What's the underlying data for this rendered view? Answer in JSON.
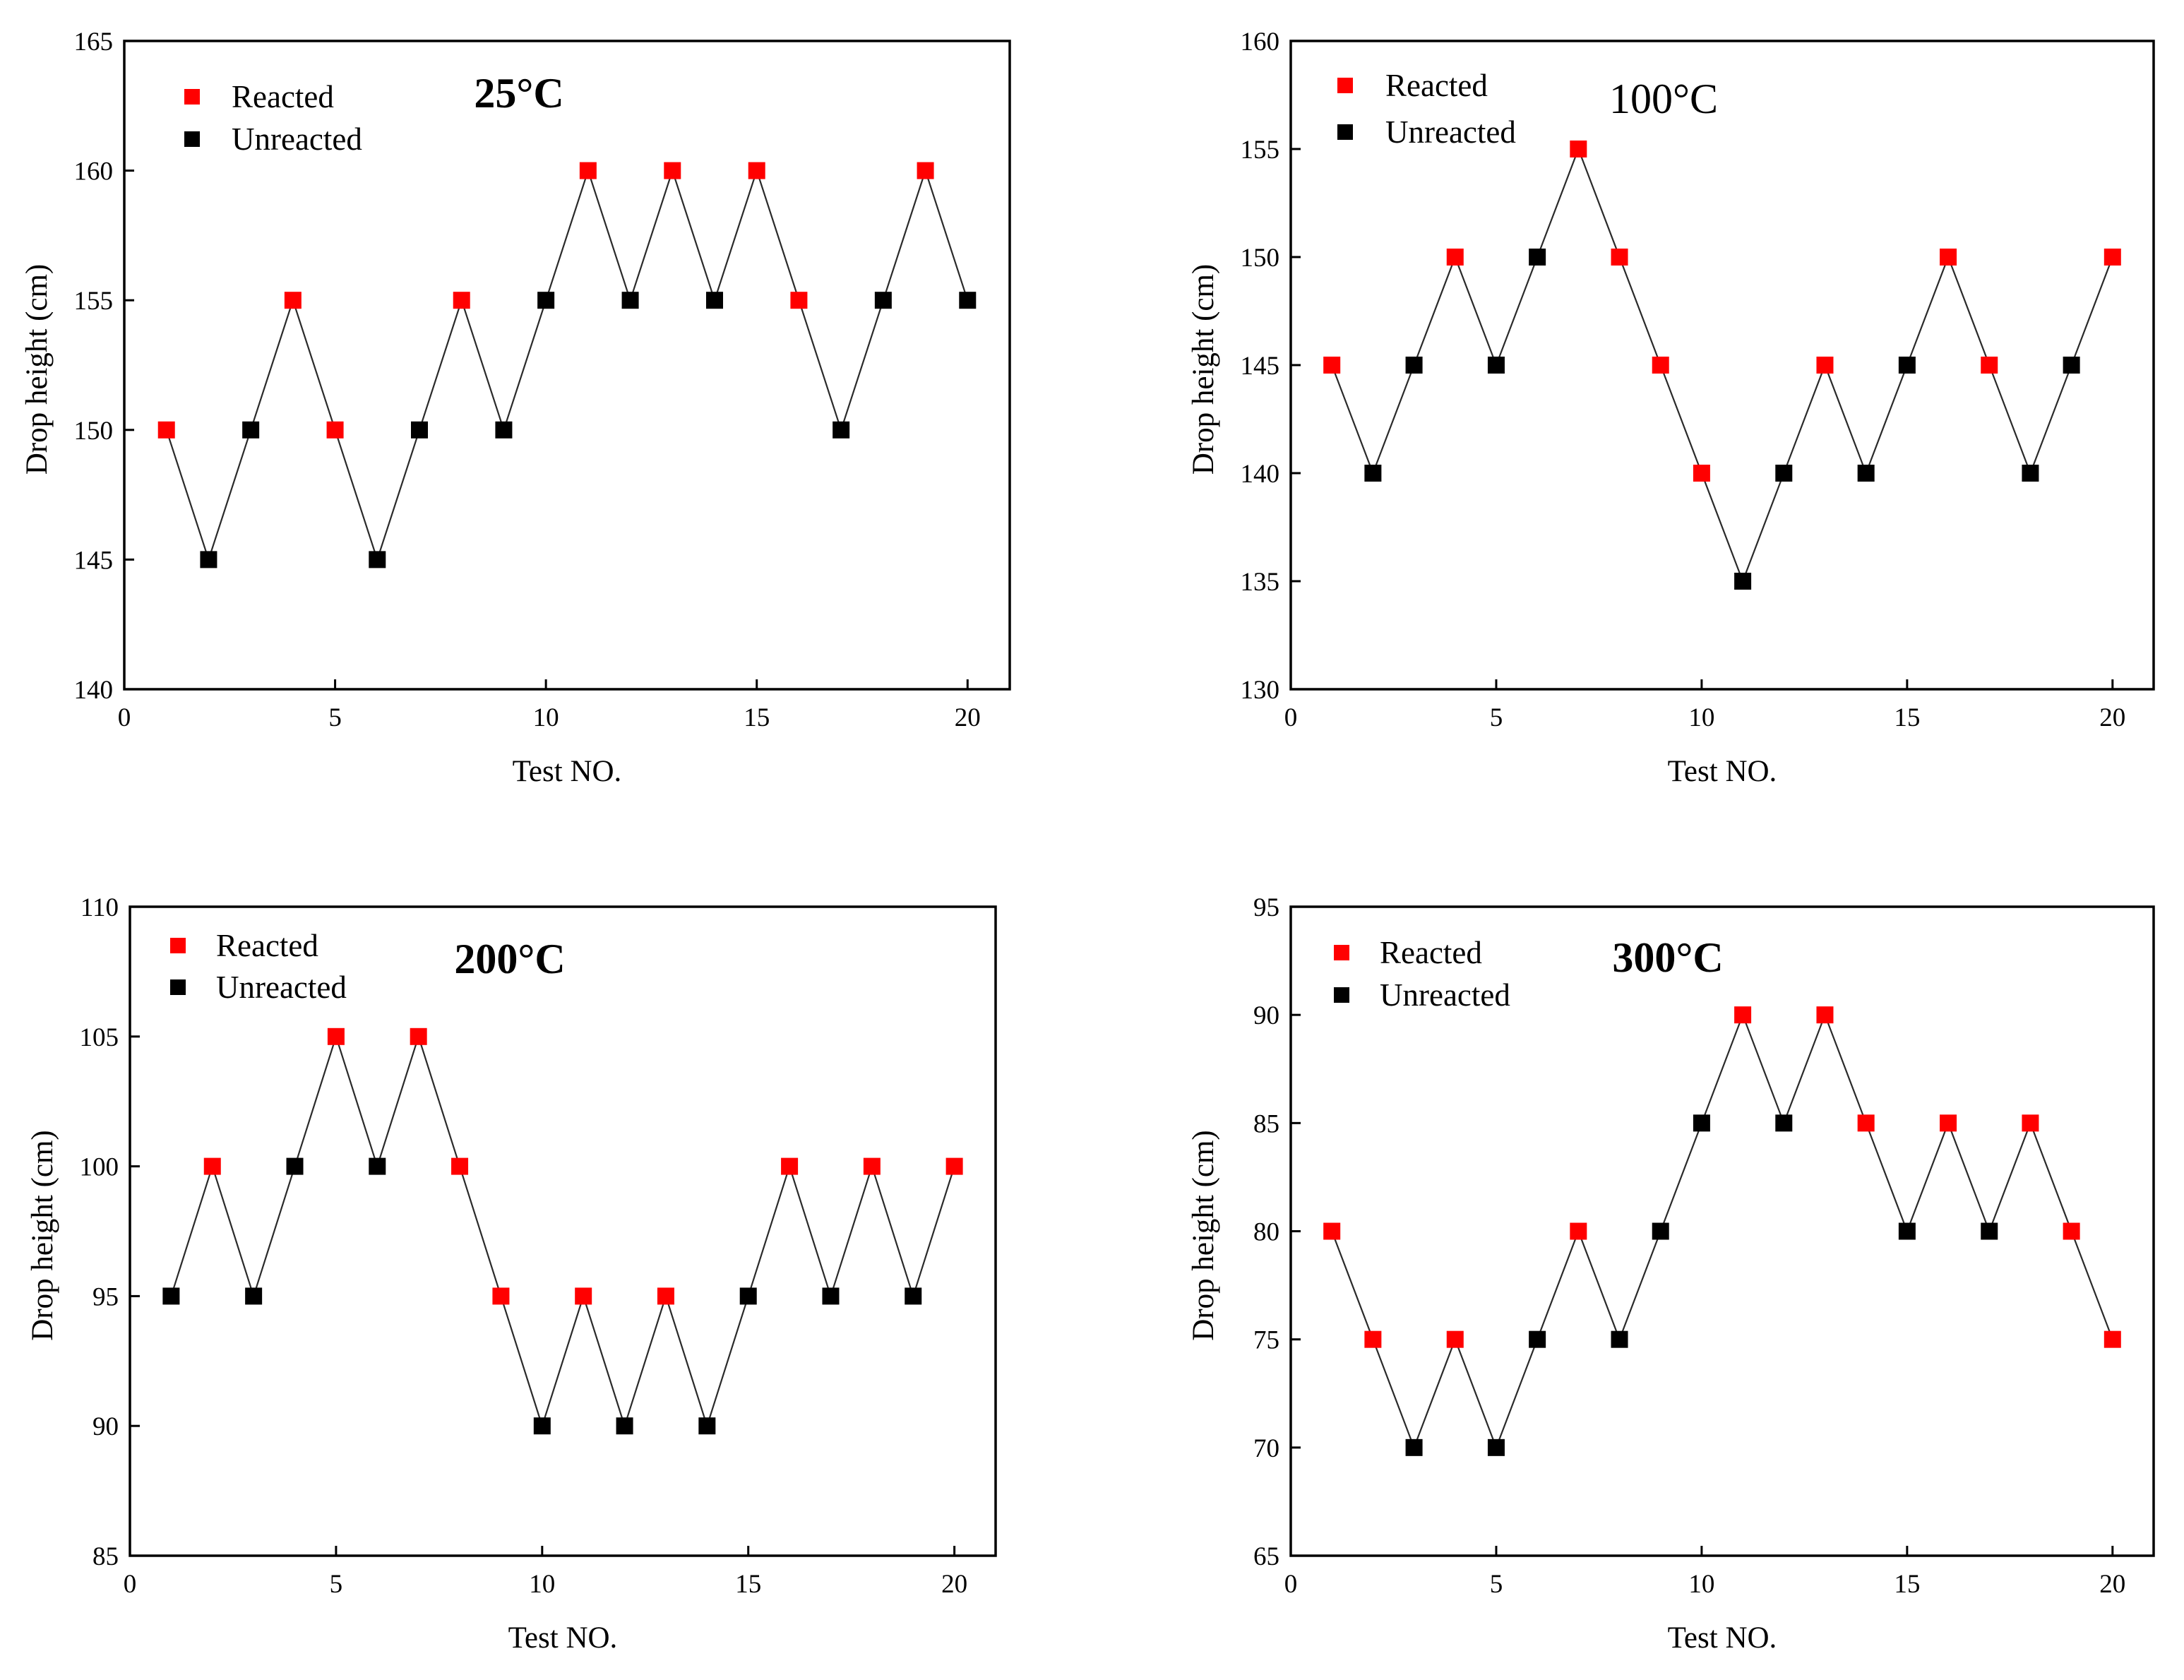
{
  "colors": {
    "reacted": "#ff0000",
    "unreacted": "#000000",
    "line": "#2a2a2a"
  },
  "chart_data": [
    {
      "type": "scatter",
      "title": "25°C",
      "xlabel": "Test NO.",
      "ylabel": "Drop height (cm)",
      "xlim": [
        0,
        21
      ],
      "ylim": [
        140,
        165
      ],
      "xticks": [
        0,
        5,
        10,
        15,
        20
      ],
      "yticks": [
        140,
        145,
        150,
        155,
        160,
        165
      ],
      "legend": {
        "placement": "top-left",
        "entries": [
          "Reacted",
          "Unreacted"
        ]
      },
      "grid": false,
      "x": [
        1,
        2,
        3,
        4,
        5,
        6,
        7,
        8,
        9,
        10,
        11,
        12,
        13,
        14,
        15,
        16,
        17,
        18,
        19,
        20
      ],
      "y": [
        150,
        145,
        150,
        155,
        150,
        145,
        150,
        155,
        150,
        155,
        160,
        155,
        160,
        155,
        160,
        155,
        150,
        155,
        160,
        155
      ],
      "status": [
        "Reacted",
        "Unreacted",
        "Unreacted",
        "Reacted",
        "Reacted",
        "Unreacted",
        "Unreacted",
        "Reacted",
        "Unreacted",
        "Unreacted",
        "Reacted",
        "Unreacted",
        "Reacted",
        "Unreacted",
        "Reacted",
        "Reacted",
        "Unreacted",
        "Unreacted",
        "Reacted",
        "Unreacted"
      ]
    },
    {
      "type": "scatter",
      "title": "100°C",
      "xlabel": "Test NO.",
      "ylabel": "Drop height (cm)",
      "xlim": [
        0,
        21
      ],
      "ylim": [
        130,
        160
      ],
      "xticks": [
        0,
        5,
        10,
        15,
        20
      ],
      "yticks": [
        130,
        135,
        140,
        145,
        150,
        155,
        160
      ],
      "legend": {
        "placement": "top-left",
        "entries": [
          "Reacted",
          "Unreacted"
        ]
      },
      "grid": false,
      "x": [
        1,
        2,
        3,
        4,
        5,
        6,
        7,
        8,
        9,
        10,
        11,
        12,
        13,
        14,
        15,
        16,
        17,
        18,
        19,
        20
      ],
      "y": [
        145,
        140,
        145,
        150,
        145,
        150,
        155,
        150,
        145,
        140,
        135,
        140,
        145,
        140,
        145,
        150,
        145,
        140,
        145,
        150
      ],
      "status": [
        "Reacted",
        "Unreacted",
        "Unreacted",
        "Reacted",
        "Unreacted",
        "Unreacted",
        "Reacted",
        "Reacted",
        "Reacted",
        "Reacted",
        "Unreacted",
        "Unreacted",
        "Reacted",
        "Unreacted",
        "Unreacted",
        "Reacted",
        "Reacted",
        "Unreacted",
        "Unreacted",
        "Reacted"
      ]
    },
    {
      "type": "scatter",
      "title": "200°C",
      "xlabel": "Test NO.",
      "ylabel": "Drop height (cm)",
      "xlim": [
        0,
        21
      ],
      "ylim": [
        85,
        110
      ],
      "xticks": [
        0,
        5,
        10,
        15,
        20
      ],
      "yticks": [
        85,
        90,
        95,
        100,
        105,
        110
      ],
      "legend": {
        "placement": "top-left",
        "entries": [
          "Reacted",
          "Unreacted"
        ]
      },
      "grid": false,
      "x": [
        1,
        2,
        3,
        4,
        5,
        6,
        7,
        8,
        9,
        10,
        11,
        12,
        13,
        14,
        15,
        16,
        17,
        18,
        19,
        20
      ],
      "y": [
        95,
        100,
        95,
        100,
        105,
        100,
        105,
        100,
        95,
        90,
        95,
        90,
        95,
        90,
        95,
        100,
        95,
        100,
        95,
        100
      ],
      "status": [
        "Unreacted",
        "Reacted",
        "Unreacted",
        "Unreacted",
        "Reacted",
        "Unreacted",
        "Reacted",
        "Reacted",
        "Reacted",
        "Unreacted",
        "Reacted",
        "Unreacted",
        "Reacted",
        "Unreacted",
        "Unreacted",
        "Reacted",
        "Unreacted",
        "Reacted",
        "Unreacted",
        "Reacted"
      ]
    },
    {
      "type": "scatter",
      "title": "300°C",
      "xlabel": "Test NO.",
      "ylabel": "Drop height (cm)",
      "xlim": [
        0,
        21
      ],
      "ylim": [
        65,
        95
      ],
      "xticks": [
        0,
        5,
        10,
        15,
        20
      ],
      "yticks": [
        65,
        70,
        75,
        80,
        85,
        90,
        95
      ],
      "legend": {
        "placement": "top-left",
        "entries": [
          "Reacted",
          "Unreacted"
        ]
      },
      "grid": false,
      "x": [
        1,
        2,
        3,
        4,
        5,
        6,
        7,
        8,
        9,
        10,
        11,
        12,
        13,
        14,
        15,
        16,
        17,
        18,
        19,
        20
      ],
      "y": [
        80,
        75,
        70,
        75,
        70,
        75,
        80,
        75,
        80,
        85,
        90,
        85,
        90,
        85,
        80,
        85,
        80,
        85,
        80,
        75
      ],
      "status": [
        "Reacted",
        "Reacted",
        "Unreacted",
        "Reacted",
        "Unreacted",
        "Unreacted",
        "Reacted",
        "Unreacted",
        "Unreacted",
        "Unreacted",
        "Reacted",
        "Unreacted",
        "Reacted",
        "Reacted",
        "Unreacted",
        "Reacted",
        "Unreacted",
        "Reacted",
        "Reacted",
        "Reacted"
      ]
    }
  ]
}
